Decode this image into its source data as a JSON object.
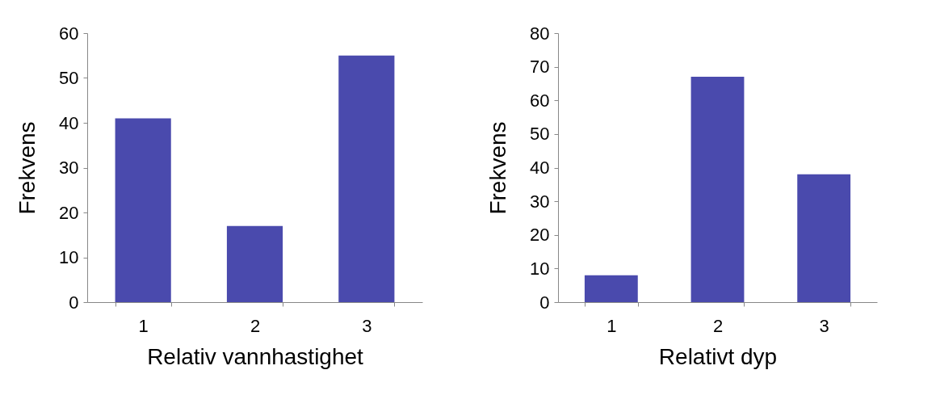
{
  "chart_data": [
    {
      "type": "bar",
      "xlabel": "Relativ vannhastighet",
      "ylabel": "Frekvens",
      "categories": [
        "1",
        "2",
        "3"
      ],
      "values": [
        41,
        17,
        55
      ],
      "color": "#4a4aad",
      "ylim": [
        0,
        60
      ],
      "yticks": [
        0,
        10,
        20,
        30,
        40,
        50,
        60
      ],
      "grid": false
    },
    {
      "type": "bar",
      "xlabel": "Relativt dyp",
      "ylabel": "Frekvens",
      "categories": [
        "1",
        "2",
        "3"
      ],
      "values": [
        8,
        67,
        38
      ],
      "color": "#4a4aad",
      "ylim": [
        0,
        80
      ],
      "yticks": [
        0,
        10,
        20,
        30,
        40,
        50,
        60,
        70,
        80
      ],
      "grid": false
    }
  ]
}
